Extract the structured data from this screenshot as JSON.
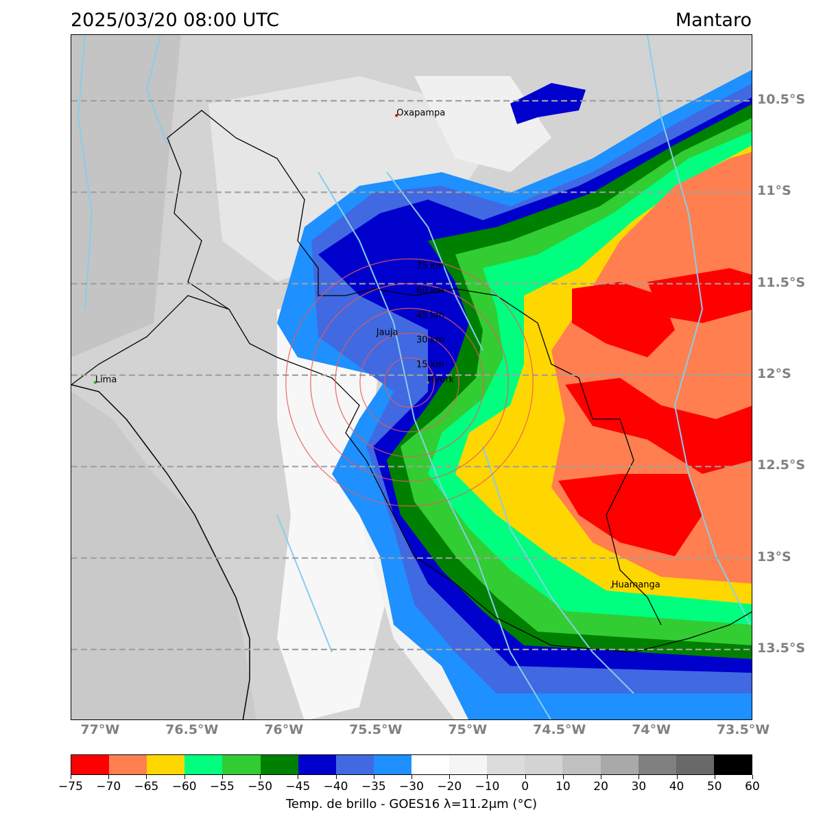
{
  "header": {
    "datetime": "2025/03/20 08:00 UTC",
    "region": "Mantaro"
  },
  "map": {
    "lat_labels": [
      {
        "text": "10.5°S",
        "lat": -10.5
      },
      {
        "text": "11°S",
        "lat": -11.0
      },
      {
        "text": "11.5°S",
        "lat": -11.5
      },
      {
        "text": "12°S",
        "lat": -12.0
      },
      {
        "text": "12.5°S",
        "lat": -12.5
      },
      {
        "text": "13°S",
        "lat": -13.0
      },
      {
        "text": "13.5°S",
        "lat": -13.5
      }
    ],
    "lon_labels": [
      {
        "text": "77°W",
        "lon": -77.0
      },
      {
        "text": "76.5°W",
        "lon": -76.5
      },
      {
        "text": "76°W",
        "lon": -76.0
      },
      {
        "text": "75.5°W",
        "lon": -75.5
      },
      {
        "text": "75°W",
        "lon": -75.0
      },
      {
        "text": "74.5°W",
        "lon": -74.5
      },
      {
        "text": "74°W",
        "lon": -74.0
      },
      {
        "text": "73.5°W",
        "lon": -73.5
      }
    ],
    "cities": [
      {
        "name": "Oxapampa",
        "lon": -75.39,
        "lat": -10.58,
        "color": "#cc0000"
      },
      {
        "name": "Lima",
        "lon": -77.03,
        "lat": -12.04,
        "color": "#2ca02c"
      },
      {
        "name": "Jauja",
        "lon": -75.5,
        "lat": -11.78,
        "color": "#1f77b4"
      },
      {
        "name": "Hyork",
        "lon": -75.22,
        "lat": -12.04,
        "color": "#888888"
      },
      {
        "name": "Huamanga",
        "lon": -74.22,
        "lat": -13.16,
        "color": "#888888"
      }
    ],
    "range_rings": {
      "center": {
        "lon": -75.32,
        "lat": -12.04
      },
      "labels": [
        "15 km",
        "30 km",
        "45 km",
        "60 km",
        "75 km"
      ],
      "radii_km": [
        15,
        30,
        45,
        60,
        75
      ],
      "color": "#e85a5a"
    }
  },
  "colorbar": {
    "label": "Temp. de brillo - GOES16 λ=11.2μm (°C)",
    "segments": [
      {
        "from": -75,
        "to": -70,
        "color": "#ff0000"
      },
      {
        "from": -70,
        "to": -65,
        "color": "#ff7f50"
      },
      {
        "from": -65,
        "to": -60,
        "color": "#ffd700"
      },
      {
        "from": -60,
        "to": -55,
        "color": "#00ff7f"
      },
      {
        "from": -55,
        "to": -50,
        "color": "#32cd32"
      },
      {
        "from": -50,
        "to": -45,
        "color": "#008000"
      },
      {
        "from": -45,
        "to": -40,
        "color": "#0000cd"
      },
      {
        "from": -40,
        "to": -35,
        "color": "#4169e1"
      },
      {
        "from": -35,
        "to": -30,
        "color": "#1e90ff"
      },
      {
        "from": -30,
        "to": -20,
        "color": "#ffffff"
      },
      {
        "from": -20,
        "to": -10,
        "color": "#f5f5f5"
      },
      {
        "from": -10,
        "to": 0,
        "color": "#dcdcdc"
      },
      {
        "from": 0,
        "to": 10,
        "color": "#d3d3d3"
      },
      {
        "from": 10,
        "to": 20,
        "color": "#c0c0c0"
      },
      {
        "from": 20,
        "to": 30,
        "color": "#a9a9a9"
      },
      {
        "from": 30,
        "to": 40,
        "color": "#808080"
      },
      {
        "from": 40,
        "to": 50,
        "color": "#696969"
      },
      {
        "from": 50,
        "to": 60,
        "color": "#000000"
      }
    ],
    "ticks": [
      "−75",
      "−70",
      "−65",
      "−60",
      "−55",
      "−50",
      "−45",
      "−40",
      "−35",
      "−30",
      "−20",
      "−10",
      "0",
      "10",
      "20",
      "30",
      "40",
      "50",
      "60"
    ]
  }
}
